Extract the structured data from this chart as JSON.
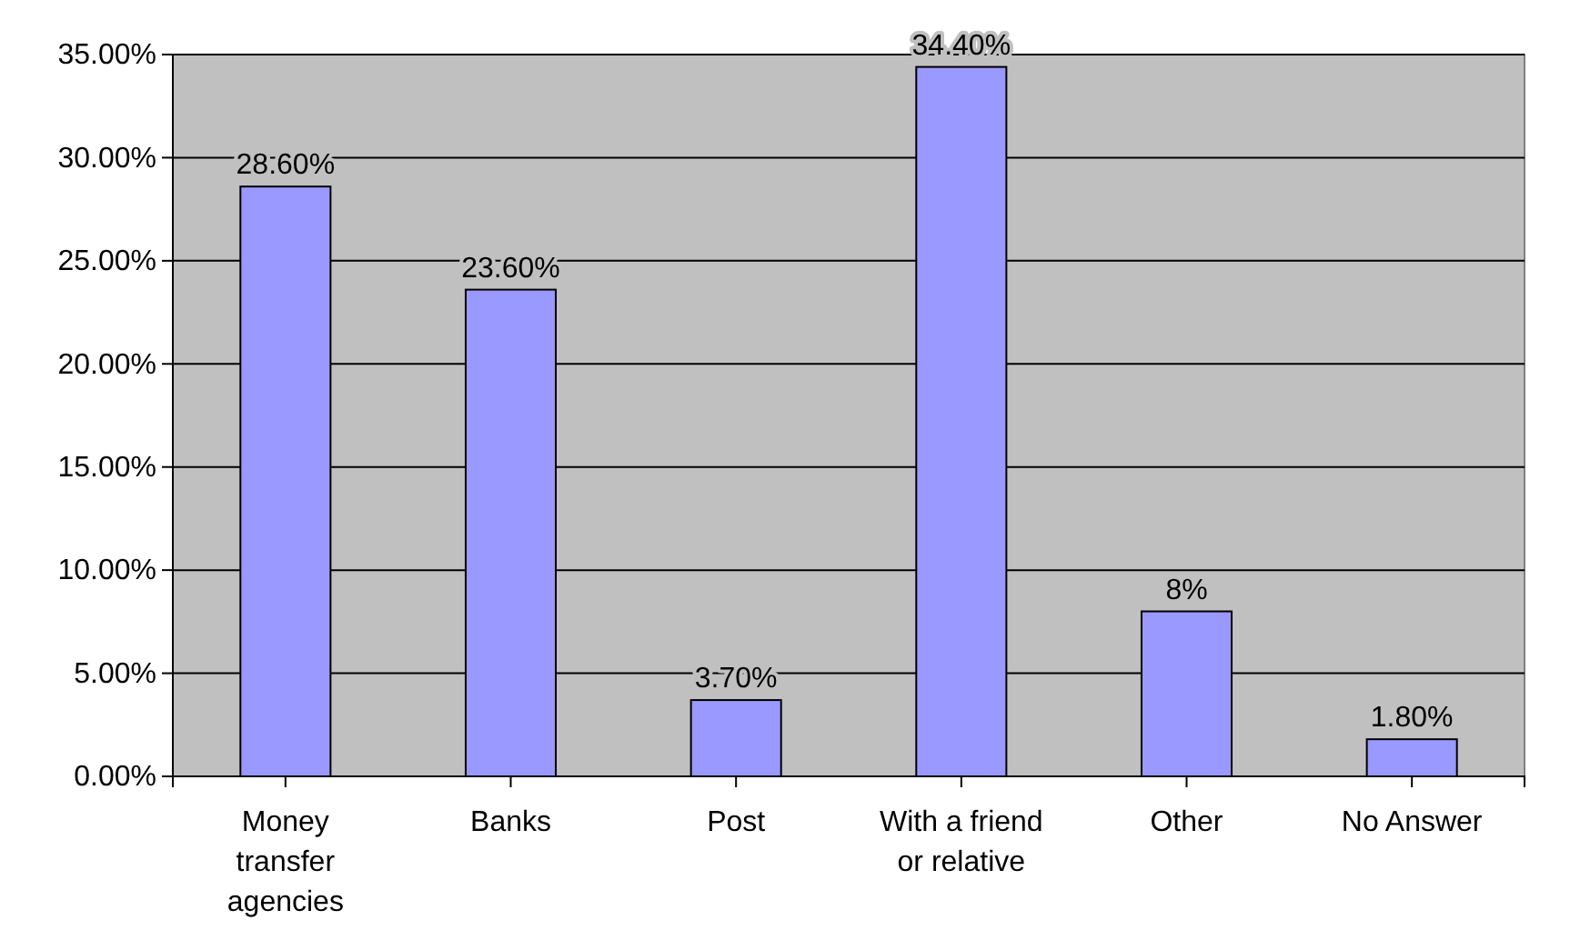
{
  "chart_data": {
    "type": "bar",
    "categories": [
      "Money transfer agencies",
      "Banks",
      "Post",
      "With a friend or relative",
      "Other",
      "No Answer"
    ],
    "values": [
      28.6,
      23.6,
      3.7,
      34.4,
      8,
      1.8
    ],
    "value_labels": [
      "28.60%",
      "23.60%",
      "3.70%",
      "34.40%",
      "8%",
      "1.80%"
    ],
    "color": "#9999ff",
    "ylim": [
      0,
      35
    ],
    "yticks": [
      {
        "value": 0,
        "label": "0.00%"
      },
      {
        "value": 5,
        "label": "5.00%"
      },
      {
        "value": 10,
        "label": "10.00%"
      },
      {
        "value": 15,
        "label": "15.00%"
      },
      {
        "value": 20,
        "label": "20.00%"
      },
      {
        "value": 25,
        "label": "25.00%"
      },
      {
        "value": 30,
        "label": "30.00%"
      },
      {
        "value": 35,
        "label": "35.00%"
      }
    ],
    "grid": "y"
  }
}
